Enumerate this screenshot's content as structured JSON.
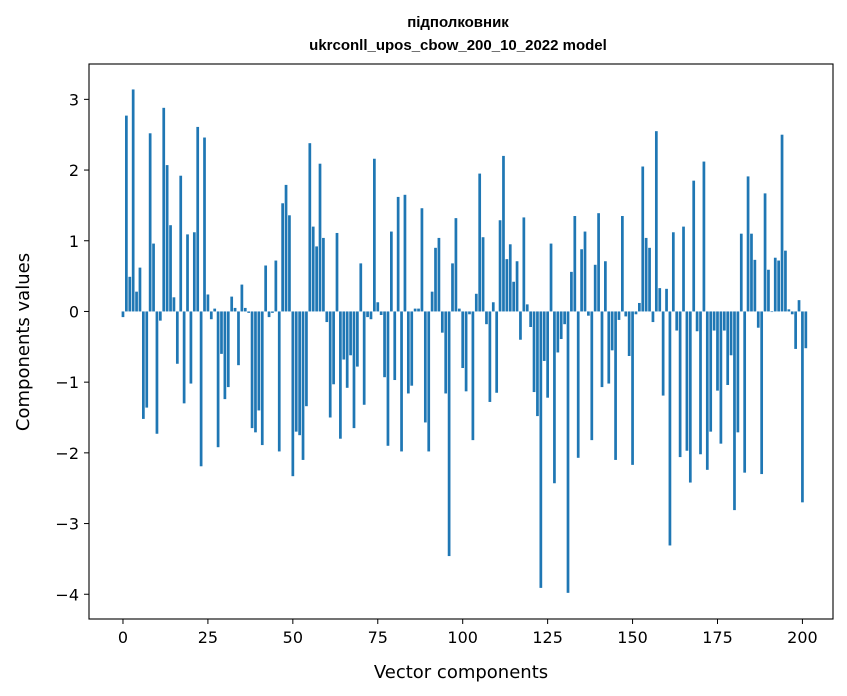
{
  "chart_data": {
    "type": "bar",
    "title": "підполковник",
    "subtitle": "ukrconll_upos_cbow_200_10_2022 model",
    "xlabel": "Vector components",
    "ylabel": "Components values",
    "xlim": [
      -10,
      209
    ],
    "ylim": [
      -4.35,
      3.5
    ],
    "xticks": [
      0,
      25,
      50,
      75,
      100,
      125,
      150,
      175,
      200
    ],
    "yticks": [
      -4,
      -3,
      -2,
      -1,
      0,
      1,
      2,
      3
    ],
    "grid": false,
    "bar_color": "#1f77b4",
    "values": [
      -0.08,
      2.77,
      0.49,
      3.14,
      0.28,
      0.62,
      -1.52,
      -1.36,
      2.52,
      0.96,
      -1.73,
      -0.13,
      2.88,
      2.07,
      1.22,
      0.2,
      -0.74,
      1.92,
      -1.3,
      1.09,
      -1.02,
      1.12,
      2.61,
      -2.19,
      2.46,
      0.24,
      -0.11,
      0.04,
      -1.92,
      -0.6,
      -1.24,
      -1.07,
      0.21,
      0.05,
      -0.76,
      0.38,
      0.05,
      -0.02,
      -1.65,
      -1.71,
      -1.4,
      -1.89,
      0.65,
      -0.08,
      -0.02,
      0.72,
      -1.98,
      1.53,
      1.79,
      1.36,
      -2.33,
      -1.7,
      -1.75,
      -2.1,
      -1.34,
      2.38,
      1.2,
      0.92,
      2.09,
      1.04,
      -0.15,
      -1.5,
      -1.03,
      1.11,
      -1.8,
      -0.68,
      -1.08,
      -0.62,
      -1.65,
      -0.78,
      0.68,
      -1.32,
      -0.08,
      -0.11,
      2.16,
      0.13,
      -0.05,
      -0.93,
      -1.9,
      1.13,
      -0.97,
      1.62,
      -1.98,
      1.65,
      -1.16,
      -1.05,
      0.04,
      0.04,
      1.46,
      -1.57,
      -1.98,
      0.28,
      0.9,
      1.04,
      -0.3,
      -1.16,
      -3.46,
      0.68,
      1.32,
      0.04,
      -0.8,
      -1.13,
      -0.04,
      -1.82,
      0.25,
      1.95,
      1.05,
      -0.18,
      -1.28,
      0.13,
      -1.15,
      1.29,
      2.2,
      0.74,
      0.95,
      0.42,
      0.71,
      -0.4,
      1.33,
      0.1,
      -0.22,
      -1.14,
      -1.48,
      -3.91,
      -0.7,
      -1.22,
      0.96,
      -2.43,
      -0.58,
      -0.39,
      -0.18,
      -3.98,
      0.56,
      1.35,
      -2.07,
      0.88,
      1.13,
      -0.06,
      -1.82,
      0.66,
      1.39,
      -1.07,
      0.71,
      -1.02,
      -0.55,
      -2.1,
      -0.12,
      1.35,
      -0.07,
      -0.63,
      -2.17,
      -0.04,
      0.12,
      2.05,
      1.04,
      0.9,
      -0.15,
      2.55,
      0.33,
      -1.19,
      0.32,
      -3.31,
      1.12,
      -0.27,
      -2.06,
      1.2,
      -1.97,
      -2.42,
      1.85,
      -0.28,
      -2.02,
      2.12,
      -2.24,
      -1.7,
      -0.27,
      -1.12,
      -1.87,
      -0.27,
      -1.04,
      -0.62,
      -2.81,
      -1.71,
      1.1,
      -2.28,
      1.91,
      1.1,
      0.73,
      -0.23,
      -2.3,
      1.67,
      0.59,
      0.0,
      0.76,
      0.72,
      2.5,
      0.86,
      0.03,
      -0.04,
      -0.53,
      0.16,
      -2.7,
      -0.52
    ]
  }
}
